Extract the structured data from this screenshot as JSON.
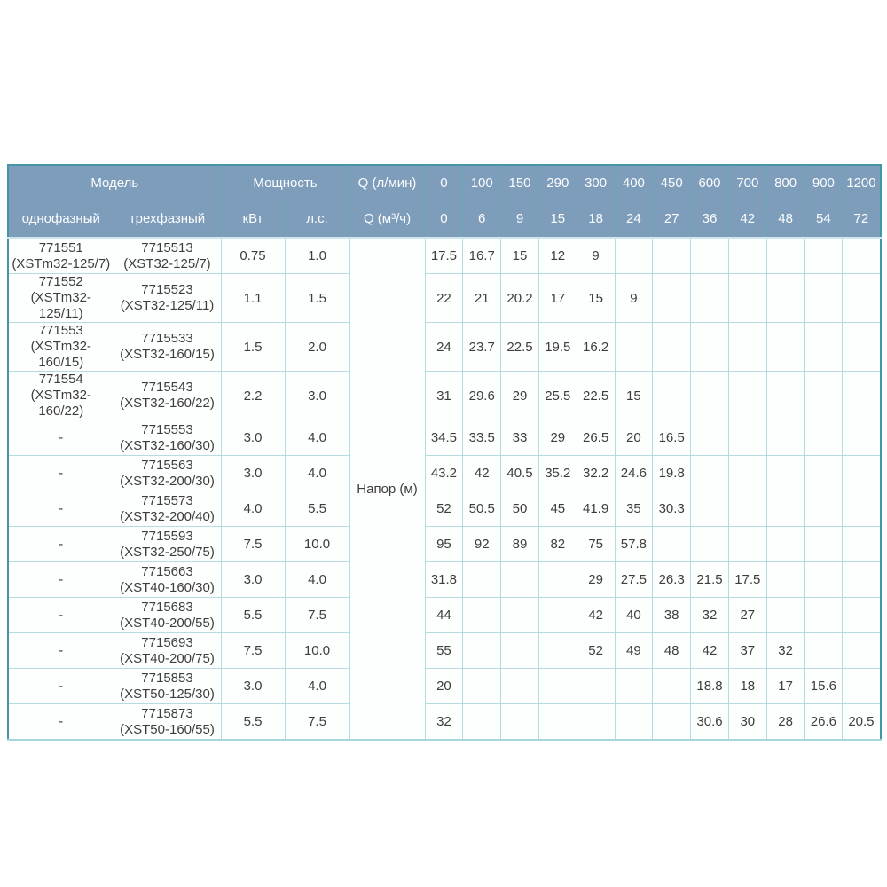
{
  "colors": {
    "header_bg": "#7e9dba",
    "header_text": "#fbfdff",
    "outer_border": "#4695a7",
    "grid_light": "#b6dbe2",
    "grid_dark": "#7da8b5",
    "cell_text": "#3d3d3d"
  },
  "table": {
    "header": {
      "model_label": "Модель",
      "power_label": "Мощность",
      "q_lmin_label": "Q (л/мин)",
      "q_m3h_label": "Q (м³/ч)",
      "single_phase_label": "однофазный",
      "three_phase_label": "трехфазный",
      "kw_label": "кВт",
      "hp_label": "л.с.",
      "flow_lmin": [
        "0",
        "100",
        "150",
        "290",
        "300",
        "400",
        "450",
        "600",
        "700",
        "800",
        "900",
        "1200"
      ],
      "flow_m3h": [
        "0",
        "6",
        "9",
        "15",
        "18",
        "24",
        "27",
        "36",
        "42",
        "48",
        "54",
        "72"
      ]
    },
    "head_label": "Напор (м)",
    "rows": [
      {
        "single_code": "771551",
        "single_name": "(XSTm32-125/7)",
        "three_code": "7715513",
        "three_name": "(XST32-125/7)",
        "kw": "0.75",
        "hp": "1.0",
        "values": [
          "17.5",
          "16.7",
          "15",
          "12",
          "9",
          "",
          "",
          "",
          "",
          "",
          "",
          ""
        ]
      },
      {
        "single_code": "771552",
        "single_name": "(XSTm32-125/11)",
        "three_code": "7715523",
        "three_name": "(XST32-125/11)",
        "kw": "1.1",
        "hp": "1.5",
        "values": [
          "22",
          "21",
          "20.2",
          "17",
          "15",
          "9",
          "",
          "",
          "",
          "",
          "",
          ""
        ]
      },
      {
        "single_code": "771553",
        "single_name": "(XSTm32-160/15)",
        "three_code": "7715533",
        "three_name": "(XST32-160/15)",
        "kw": "1.5",
        "hp": "2.0",
        "values": [
          "24",
          "23.7",
          "22.5",
          "19.5",
          "16.2",
          "",
          "",
          "",
          "",
          "",
          "",
          ""
        ]
      },
      {
        "single_code": "771554",
        "single_name": "(XSTm32-160/22)",
        "three_code": "7715543",
        "three_name": "(XST32-160/22)",
        "kw": "2.2",
        "hp": "3.0",
        "values": [
          "31",
          "29.6",
          "29",
          "25.5",
          "22.5",
          "15",
          "",
          "",
          "",
          "",
          "",
          ""
        ]
      },
      {
        "single_code": "-",
        "single_name": "",
        "three_code": "7715553",
        "three_name": "(XST32-160/30)",
        "kw": "3.0",
        "hp": "4.0",
        "values": [
          "34.5",
          "33.5",
          "33",
          "29",
          "26.5",
          "20",
          "16.5",
          "",
          "",
          "",
          "",
          ""
        ]
      },
      {
        "single_code": "-",
        "single_name": "",
        "three_code": "7715563",
        "three_name": "(XST32-200/30)",
        "kw": "3.0",
        "hp": "4.0",
        "values": [
          "43.2",
          "42",
          "40.5",
          "35.2",
          "32.2",
          "24.6",
          "19.8",
          "",
          "",
          "",
          "",
          ""
        ]
      },
      {
        "single_code": "-",
        "single_name": "",
        "three_code": "7715573",
        "three_name": "(XST32-200/40)",
        "kw": "4.0",
        "hp": "5.5",
        "values": [
          "52",
          "50.5",
          "50",
          "45",
          "41.9",
          "35",
          "30.3",
          "",
          "",
          "",
          "",
          ""
        ]
      },
      {
        "single_code": "-",
        "single_name": "",
        "three_code": "7715593",
        "three_name": "(XST32-250/75)",
        "kw": "7.5",
        "hp": "10.0",
        "values": [
          "95",
          "92",
          "89",
          "82",
          "75",
          "57.8",
          "",
          "",
          "",
          "",
          "",
          ""
        ]
      },
      {
        "single_code": "-",
        "single_name": "",
        "three_code": "7715663",
        "three_name": "(XST40-160/30)",
        "kw": "3.0",
        "hp": "4.0",
        "values": [
          "31.8",
          "",
          "",
          "",
          "29",
          "27.5",
          "26.3",
          "21.5",
          "17.5",
          "",
          "",
          ""
        ]
      },
      {
        "single_code": "-",
        "single_name": "",
        "three_code": "7715683",
        "three_name": "(XST40-200/55)",
        "kw": "5.5",
        "hp": "7.5",
        "values": [
          "44",
          "",
          "",
          "",
          "42",
          "40",
          "38",
          "32",
          "27",
          "",
          "",
          ""
        ]
      },
      {
        "single_code": "-",
        "single_name": "",
        "three_code": "7715693",
        "three_name": "(XST40-200/75)",
        "kw": "7.5",
        "hp": "10.0",
        "values": [
          "55",
          "",
          "",
          "",
          "52",
          "49",
          "48",
          "42",
          "37",
          "32",
          "",
          ""
        ]
      },
      {
        "single_code": "-",
        "single_name": "",
        "three_code": "7715853",
        "three_name": "(XST50-125/30)",
        "kw": "3.0",
        "hp": "4.0",
        "values": [
          "20",
          "",
          "",
          "",
          "",
          "",
          "",
          "18.8",
          "18",
          "17",
          "15.6",
          ""
        ]
      },
      {
        "single_code": "-",
        "single_name": "",
        "three_code": "7715873",
        "three_name": "(XST50-160/55)",
        "kw": "5.5",
        "hp": "7.5",
        "values": [
          "32",
          "",
          "",
          "",
          "",
          "",
          "",
          "30.6",
          "30",
          "28",
          "26.6",
          "20.5"
        ]
      }
    ]
  },
  "chart_data": {
    "type": "table",
    "title": "Напор (м) — pump head vs flow rate",
    "x_header_lmin": [
      0,
      100,
      150,
      290,
      300,
      400,
      450,
      600,
      700,
      800,
      900,
      1200
    ],
    "x_header_m3h": [
      0,
      6,
      9,
      15,
      18,
      24,
      27,
      36,
      42,
      48,
      54,
      72
    ],
    "series": [
      {
        "model_single": "771551 (XSTm32-125/7)",
        "model_three": "7715513 (XST32-125/7)",
        "kw": 0.75,
        "hp": 1.0,
        "head_m": [
          17.5,
          16.7,
          15,
          12,
          9,
          null,
          null,
          null,
          null,
          null,
          null,
          null
        ]
      },
      {
        "model_single": "771552 (XSTm32-125/11)",
        "model_three": "7715523 (XST32-125/11)",
        "kw": 1.1,
        "hp": 1.5,
        "head_m": [
          22,
          21,
          20.2,
          17,
          15,
          9,
          null,
          null,
          null,
          null,
          null,
          null
        ]
      },
      {
        "model_single": "771553 (XSTm32-160/15)",
        "model_three": "7715533 (XST32-160/15)",
        "kw": 1.5,
        "hp": 2.0,
        "head_m": [
          24,
          23.7,
          22.5,
          19.5,
          16.2,
          null,
          null,
          null,
          null,
          null,
          null,
          null
        ]
      },
      {
        "model_single": "771554 (XSTm32-160/22)",
        "model_three": "7715543 (XST32-160/22)",
        "kw": 2.2,
        "hp": 3.0,
        "head_m": [
          31,
          29.6,
          29,
          25.5,
          22.5,
          15,
          null,
          null,
          null,
          null,
          null,
          null
        ]
      },
      {
        "model_single": null,
        "model_three": "7715553 (XST32-160/30)",
        "kw": 3.0,
        "hp": 4.0,
        "head_m": [
          34.5,
          33.5,
          33,
          29,
          26.5,
          20,
          16.5,
          null,
          null,
          null,
          null,
          null
        ]
      },
      {
        "model_single": null,
        "model_three": "7715563 (XST32-200/30)",
        "kw": 3.0,
        "hp": 4.0,
        "head_m": [
          43.2,
          42,
          40.5,
          35.2,
          32.2,
          24.6,
          19.8,
          null,
          null,
          null,
          null,
          null
        ]
      },
      {
        "model_single": null,
        "model_three": "7715573 (XST32-200/40)",
        "kw": 4.0,
        "hp": 5.5,
        "head_m": [
          52,
          50.5,
          50,
          45,
          41.9,
          35,
          30.3,
          null,
          null,
          null,
          null,
          null
        ]
      },
      {
        "model_single": null,
        "model_three": "7715593 (XST32-250/75)",
        "kw": 7.5,
        "hp": 10.0,
        "head_m": [
          95,
          92,
          89,
          82,
          75,
          57.8,
          null,
          null,
          null,
          null,
          null,
          null
        ]
      },
      {
        "model_single": null,
        "model_three": "7715663 (XST40-160/30)",
        "kw": 3.0,
        "hp": 4.0,
        "head_m": [
          31.8,
          null,
          null,
          null,
          29,
          27.5,
          26.3,
          21.5,
          17.5,
          null,
          null,
          null
        ]
      },
      {
        "model_single": null,
        "model_three": "7715683 (XST40-200/55)",
        "kw": 5.5,
        "hp": 7.5,
        "head_m": [
          44,
          null,
          null,
          null,
          42,
          40,
          38,
          32,
          27,
          null,
          null,
          null
        ]
      },
      {
        "model_single": null,
        "model_three": "7715693 (XST40-200/75)",
        "kw": 7.5,
        "hp": 10.0,
        "head_m": [
          55,
          null,
          null,
          null,
          52,
          49,
          48,
          42,
          37,
          32,
          null,
          null
        ]
      },
      {
        "model_single": null,
        "model_three": "7715853 (XST50-125/30)",
        "kw": 3.0,
        "hp": 4.0,
        "head_m": [
          20,
          null,
          null,
          null,
          null,
          null,
          null,
          18.8,
          18,
          17,
          15.6,
          null
        ]
      },
      {
        "model_single": null,
        "model_three": "7715873 (XST50-160/55)",
        "kw": 5.5,
        "hp": 7.5,
        "head_m": [
          32,
          null,
          null,
          null,
          null,
          null,
          null,
          30.6,
          30,
          28,
          26.6,
          20.5
        ]
      }
    ]
  }
}
